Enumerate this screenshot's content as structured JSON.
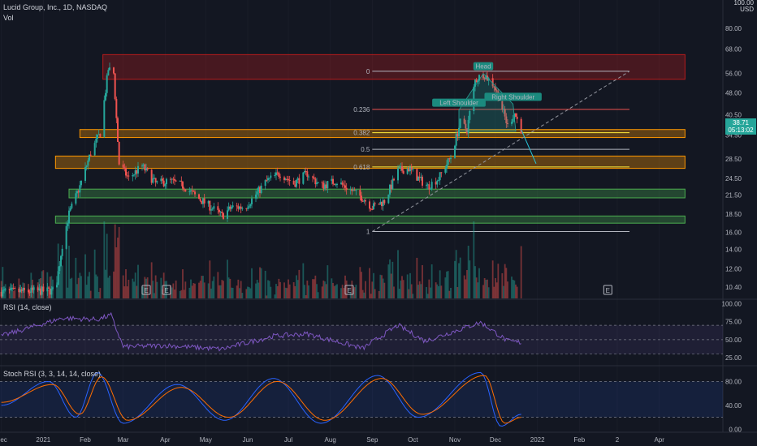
{
  "header": {
    "symbol_line": "Lucid Group, Inc., 1D, NASDAQ",
    "volume_label": "Vol",
    "currency_lines": [
      "100.00",
      "USD"
    ]
  },
  "rsi_pane": {
    "title": "RSI (14, close)"
  },
  "stoch_pane": {
    "title": "Stoch RSI (3, 3, 14, 14, close)"
  },
  "price_tag": {
    "value": "38.71",
    "time": "05:13:02"
  },
  "colors": {
    "background": "#131722",
    "up": "#26a69a",
    "down": "#ef5350",
    "rsi_line": "#7e57c2",
    "stoch_k": "#2962ff",
    "stoch_d": "#ff6d00",
    "resistance_box": "#b71c1c",
    "orange_box": "#ff9800",
    "green_box": "#4caf50"
  },
  "chart_data": [
    {
      "type": "candlestick",
      "pane": "price",
      "scale": "log",
      "ylim": [
        9.5,
        100
      ],
      "x_ticks": [
        "Dec",
        "2021",
        "Feb",
        "Mar",
        "Apr",
        "May",
        "Jun",
        "Jul",
        "Aug",
        "Sep",
        "Oct",
        "Nov",
        "Dec",
        "2022",
        "Feb",
        "2",
        "Apr"
      ],
      "y_ticks": [
        "80.00",
        "68.00",
        "56.00",
        "48.00",
        "40.50",
        "34.50",
        "28.50",
        "24.50",
        "21.50",
        "18.50",
        "16.00",
        "14.00",
        "12.00",
        "10.40"
      ],
      "close_path": [
        [
          "2020-12-01",
          10.0
        ],
        [
          "2021-01-10",
          10.1
        ],
        [
          "2021-01-15",
          14.5
        ],
        [
          "2021-01-20",
          18.5
        ],
        [
          "2021-01-28",
          23
        ],
        [
          "2021-02-05",
          30
        ],
        [
          "2021-02-12",
          35
        ],
        [
          "2021-02-18",
          58
        ],
        [
          "2021-02-22",
          56
        ],
        [
          "2021-02-26",
          27.5
        ],
        [
          "2021-03-05",
          24.5
        ],
        [
          "2021-03-15",
          27
        ],
        [
          "2021-03-25",
          23.5
        ],
        [
          "2021-04-05",
          24
        ],
        [
          "2021-04-15",
          23
        ],
        [
          "2021-04-25",
          21
        ],
        [
          "2021-05-05",
          19.5
        ],
        [
          "2021-05-13",
          18.2
        ],
        [
          "2021-05-20",
          19.5
        ],
        [
          "2021-05-30",
          19.5
        ],
        [
          "2021-06-05",
          21
        ],
        [
          "2021-06-15",
          24
        ],
        [
          "2021-06-25",
          25.5
        ],
        [
          "2021-07-05",
          23.5
        ],
        [
          "2021-07-15",
          25.5
        ],
        [
          "2021-07-25",
          23
        ],
        [
          "2021-08-05",
          24
        ],
        [
          "2021-08-15",
          22.5
        ],
        [
          "2021-08-25",
          21
        ],
        [
          "2021-09-01",
          19.5
        ],
        [
          "2021-09-10",
          20.5
        ],
        [
          "2021-09-20",
          26
        ],
        [
          "2021-09-28",
          26.5
        ],
        [
          "2021-10-05",
          24.5
        ],
        [
          "2021-10-12",
          23
        ],
        [
          "2021-10-20",
          24.5
        ],
        [
          "2021-10-29",
          29
        ],
        [
          "2021-11-05",
          38
        ],
        [
          "2021-11-10",
          36
        ],
        [
          "2021-11-16",
          53
        ],
        [
          "2021-11-22",
          56
        ],
        [
          "2021-11-30",
          51
        ],
        [
          "2021-12-05",
          44
        ],
        [
          "2021-12-10",
          37
        ],
        [
          "2021-12-15",
          41
        ],
        [
          "2021-12-20",
          36
        ]
      ],
      "projection": [
        [
          "2021-12-20",
          36
        ],
        [
          "2021-12-31",
          27.5
        ]
      ],
      "annotations": [
        {
          "label": "Head",
          "x": "2021-11-22",
          "y": 56
        },
        {
          "label": "Left Shoulder",
          "x": "2021-11-04",
          "y": 42
        },
        {
          "label": "Right Shoulder",
          "x": "2021-12-14",
          "y": 44
        }
      ],
      "zones": [
        {
          "kind": "resistance",
          "from": "2021-02-14",
          "to": "2022-04-20",
          "low": 53.5,
          "high": 65
        },
        {
          "kind": "orange",
          "from": "2021-01-28",
          "to": "2022-04-20",
          "low": 33.8,
          "high": 36
        },
        {
          "kind": "orange",
          "from": "2021-01-10",
          "to": "2022-04-20",
          "low": 26.5,
          "high": 29.2
        },
        {
          "kind": "green",
          "from": "2021-01-20",
          "to": "2022-04-20",
          "low": 21,
          "high": 22.5
        },
        {
          "kind": "green",
          "from": "2021-01-10",
          "to": "2022-04-20",
          "low": 17.2,
          "high": 18.2
        }
      ],
      "fibonacci": {
        "from": "2021-09-01",
        "to": "2022-03-10",
        "levels": [
          {
            "label": "0",
            "value": 57
          },
          {
            "label": "0.236",
            "value": 42.2
          },
          {
            "label": "0.382",
            "value": 35.1
          },
          {
            "label": "0.5",
            "value": 30.8
          },
          {
            "label": "0.618",
            "value": 26.8
          },
          {
            "label": "1",
            "value": 16.1
          }
        ]
      },
      "trendline": {
        "from": [
          "2021-09-01",
          16.1
        ],
        "to": [
          "2022-03-10",
          57
        ]
      },
      "earnings_markers": [
        {
          "x": "2021-03-18",
          "label": "E"
        },
        {
          "x": "2021-04-02",
          "label": "E"
        },
        {
          "x": "2021-08-15",
          "label": "E"
        },
        {
          "x": "2022-02-22",
          "label": "E"
        }
      ]
    },
    {
      "type": "line",
      "pane": "rsi",
      "ylim": [
        15,
        105
      ],
      "y_ticks": [
        "100.00",
        "75.00",
        "50.00",
        "25.00"
      ],
      "bands": [
        30,
        70
      ],
      "values": [
        [
          "2020-12-01",
          55
        ],
        [
          "2021-01-15",
          80
        ],
        [
          "2021-02-10",
          78
        ],
        [
          "2021-02-20",
          84
        ],
        [
          "2021-03-01",
          40
        ],
        [
          "2021-04-01",
          42
        ],
        [
          "2021-05-13",
          37
        ],
        [
          "2021-06-20",
          55
        ],
        [
          "2021-07-15",
          58
        ],
        [
          "2021-08-25",
          38
        ],
        [
          "2021-09-20",
          70
        ],
        [
          "2021-10-10",
          48
        ],
        [
          "2021-11-20",
          74
        ],
        [
          "2021-12-10",
          48
        ],
        [
          "2021-12-20",
          46
        ]
      ]
    },
    {
      "type": "line",
      "pane": "stoch_rsi",
      "ylim": [
        -5,
        105
      ],
      "y_ticks": [
        "80.00",
        "40.00",
        "0.00"
      ],
      "bands": [
        20,
        80
      ],
      "series": [
        {
          "values": [
            [
              "2020-12-01",
              40
            ],
            [
              "2021-01-05",
              80
            ],
            [
              "2021-01-25",
              20
            ],
            [
              "2021-02-10",
              95
            ],
            [
              "2021-03-01",
              10
            ],
            [
              "2021-04-10",
              75
            ],
            [
              "2021-05-15",
              15
            ],
            [
              "2021-06-20",
              85
            ],
            [
              "2021-07-25",
              10
            ],
            [
              "2021-09-05",
              90
            ],
            [
              "2021-10-05",
              20
            ],
            [
              "2021-11-20",
              95
            ],
            [
              "2021-12-05",
              5
            ],
            [
              "2021-12-20",
              25
            ]
          ]
        },
        {
          "values": [
            [
              "2020-12-01",
              45
            ],
            [
              "2021-01-08",
              75
            ],
            [
              "2021-01-28",
              25
            ],
            [
              "2021-02-13",
              88
            ],
            [
              "2021-03-04",
              15
            ],
            [
              "2021-04-13",
              70
            ],
            [
              "2021-05-18",
              20
            ],
            [
              "2021-06-23",
              80
            ],
            [
              "2021-07-28",
              15
            ],
            [
              "2021-09-08",
              85
            ],
            [
              "2021-10-08",
              25
            ],
            [
              "2021-11-23",
              90
            ],
            [
              "2021-12-08",
              10
            ],
            [
              "2021-12-20",
              20
            ]
          ]
        }
      ]
    }
  ]
}
